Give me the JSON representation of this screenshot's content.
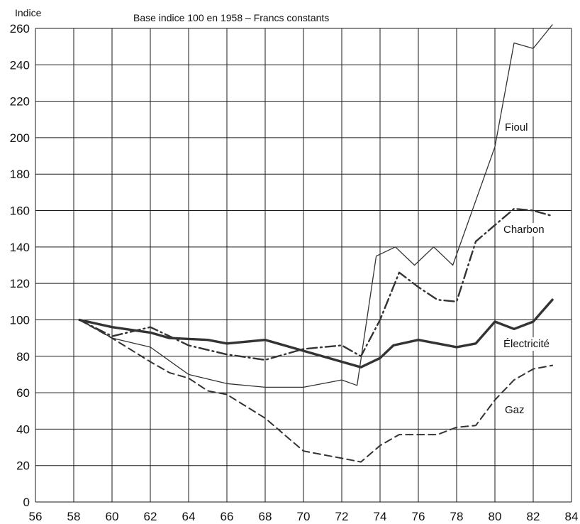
{
  "chart_data": {
    "type": "line",
    "ylabel": "Indice",
    "subtitle": "Base indice 100 en 1958 – Francs constants",
    "xlim": [
      56,
      84
    ],
    "ylim": [
      0,
      260
    ],
    "x_ticks": [
      56,
      58,
      60,
      62,
      64,
      66,
      68,
      70,
      72,
      74,
      76,
      78,
      80,
      82,
      84
    ],
    "y_ticks": [
      0,
      20,
      40,
      60,
      80,
      100,
      120,
      140,
      160,
      180,
      200,
      220,
      240,
      260
    ],
    "grid": true,
    "series": [
      {
        "name": "Fioul",
        "style": "thin-solid",
        "color": "#333333",
        "points": [
          [
            58.3,
            100
          ],
          [
            60,
            90
          ],
          [
            62,
            85
          ],
          [
            64,
            70
          ],
          [
            66,
            65
          ],
          [
            68,
            63
          ],
          [
            70,
            63
          ],
          [
            72,
            67
          ],
          [
            72.8,
            64
          ],
          [
            73.8,
            135
          ],
          [
            74.8,
            140
          ],
          [
            75.8,
            130
          ],
          [
            76.8,
            140
          ],
          [
            77.8,
            130
          ],
          [
            80,
            195
          ],
          [
            81,
            252
          ],
          [
            82,
            249
          ],
          [
            83,
            262
          ]
        ]
      },
      {
        "name": "Charbon",
        "style": "dash-dot",
        "color": "#333333",
        "points": [
          [
            58.3,
            100
          ],
          [
            60,
            91
          ],
          [
            62,
            96
          ],
          [
            64,
            86
          ],
          [
            66,
            81
          ],
          [
            68,
            78
          ],
          [
            70,
            84
          ],
          [
            72,
            86
          ],
          [
            73,
            80
          ],
          [
            74,
            100
          ],
          [
            75,
            126
          ],
          [
            76,
            118
          ],
          [
            77,
            111
          ],
          [
            78,
            110
          ],
          [
            79,
            143
          ],
          [
            80,
            152
          ],
          [
            81,
            161
          ],
          [
            82,
            160
          ],
          [
            83,
            157
          ]
        ]
      },
      {
        "name": "Électricité",
        "style": "thick-solid",
        "color": "#333333",
        "points": [
          [
            58.3,
            100
          ],
          [
            60,
            96
          ],
          [
            62,
            93
          ],
          [
            63,
            90
          ],
          [
            65,
            89
          ],
          [
            66,
            87
          ],
          [
            68,
            89
          ],
          [
            70,
            83
          ],
          [
            72,
            77
          ],
          [
            73,
            74
          ],
          [
            74,
            79
          ],
          [
            74.7,
            86
          ],
          [
            76,
            89
          ],
          [
            78,
            85
          ],
          [
            79,
            87
          ],
          [
            80,
            99
          ],
          [
            81,
            95
          ],
          [
            82,
            99
          ],
          [
            83,
            111
          ]
        ]
      },
      {
        "name": "Gaz",
        "style": "dashed",
        "color": "#333333",
        "points": [
          [
            58.3,
            100
          ],
          [
            60,
            90
          ],
          [
            62,
            77
          ],
          [
            63,
            71
          ],
          [
            64,
            68
          ],
          [
            65,
            61
          ],
          [
            66,
            59
          ],
          [
            68,
            46
          ],
          [
            70,
            28
          ],
          [
            72,
            24
          ],
          [
            73,
            22
          ],
          [
            74,
            31
          ],
          [
            75,
            37
          ],
          [
            76,
            37
          ],
          [
            77,
            37
          ],
          [
            78,
            41
          ],
          [
            79,
            42
          ],
          [
            80,
            56
          ],
          [
            81,
            67
          ],
          [
            82,
            73
          ],
          [
            83,
            75
          ]
        ]
      }
    ]
  }
}
